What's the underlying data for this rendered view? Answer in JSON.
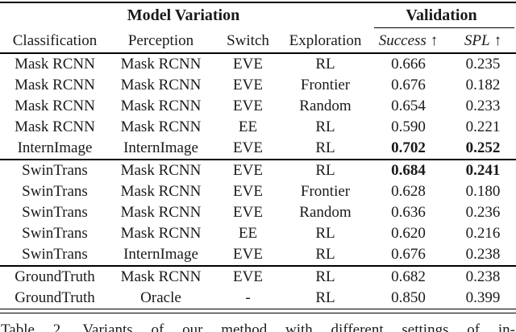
{
  "colors": {
    "background": "#ffffff",
    "text": "#1a1a1a",
    "rule": "#000000"
  },
  "table": {
    "group_header": {
      "model_variation": "Model Variation",
      "validation": "Validation"
    },
    "columns": [
      "Classification",
      "Perception",
      "Switch",
      "Exploration"
    ],
    "metrics": [
      {
        "label": "Success",
        "arrow": "↑"
      },
      {
        "label": "SPL",
        "arrow": "↑"
      }
    ],
    "blocks": [
      {
        "rows": [
          {
            "cells": [
              "Mask RCNN",
              "Mask RCNN",
              "EVE",
              "RL",
              "0.666",
              "0.235"
            ]
          },
          {
            "cells": [
              "Mask RCNN",
              "Mask RCNN",
              "EVE",
              "Frontier",
              "0.676",
              "0.182"
            ]
          },
          {
            "cells": [
              "Mask RCNN",
              "Mask RCNN",
              "EVE",
              "Random",
              "0.654",
              "0.233"
            ]
          },
          {
            "cells": [
              "Mask RCNN",
              "Mask RCNN",
              "EE",
              "RL",
              "0.590",
              "0.221"
            ]
          },
          {
            "cells": [
              "InternImage",
              "InternImage",
              "EVE",
              "RL",
              "0.702",
              "0.252"
            ]
          }
        ]
      },
      {
        "rows": [
          {
            "cells": [
              "SwinTrans",
              "Mask RCNN",
              "EVE",
              "RL",
              "0.684",
              "0.241"
            ]
          },
          {
            "cells": [
              "SwinTrans",
              "Mask RCNN",
              "EVE",
              "Frontier",
              "0.628",
              "0.180"
            ]
          },
          {
            "cells": [
              "SwinTrans",
              "Mask RCNN",
              "EVE",
              "Random",
              "0.636",
              "0.236"
            ]
          },
          {
            "cells": [
              "SwinTrans",
              "Mask RCNN",
              "EE",
              "RL",
              "0.620",
              "0.216"
            ]
          },
          {
            "cells": [
              "SwinTrans",
              "InternImage",
              "EVE",
              "RL",
              "0.676",
              "0.238"
            ]
          }
        ]
      },
      {
        "rows": [
          {
            "cells": [
              "GroundTruth",
              "Mask RCNN",
              "EVE",
              "RL",
              "0.682",
              "0.238"
            ]
          },
          {
            "cells": [
              "GroundTruth",
              "Oracle",
              "-",
              "RL",
              "0.850",
              "0.399"
            ]
          }
        ]
      }
    ]
  },
  "caption": {
    "text": "Table 2. Variants of our method with different settings of in-"
  }
}
